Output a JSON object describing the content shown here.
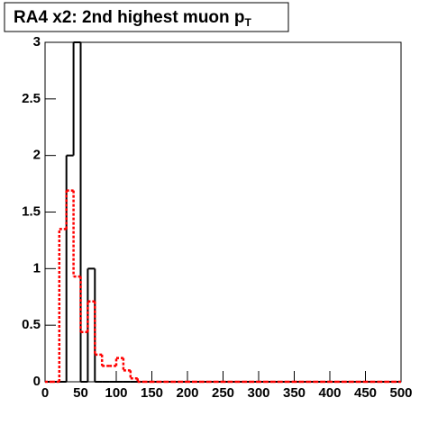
{
  "chart_data": {
    "type": "histogram",
    "title": "RA4 x2: 2nd highest muon p",
    "title_subscript": "T",
    "bins": [
      0,
      10,
      20,
      30,
      40,
      50,
      60,
      70,
      80,
      90,
      100,
      110,
      120,
      130,
      140,
      150,
      160,
      170,
      180,
      190,
      200,
      210,
      220,
      230,
      240,
      250,
      260,
      270,
      280,
      290,
      300,
      310,
      320,
      330,
      340,
      350,
      360,
      370,
      380,
      390,
      400,
      410,
      420,
      430,
      440,
      450,
      460,
      470,
      480,
      490,
      500
    ],
    "series": [
      {
        "color": "#000000",
        "line_style": "solid",
        "values": [
          0,
          0,
          0,
          2,
          3,
          0,
          1,
          0,
          0,
          0,
          0,
          0,
          0,
          0,
          0,
          0,
          0,
          0,
          0,
          0,
          0,
          0,
          0,
          0,
          0,
          0,
          0,
          0,
          0,
          0,
          0,
          0,
          0,
          0,
          0,
          0,
          0,
          0,
          0,
          0,
          0,
          0,
          0,
          0,
          0,
          0,
          0,
          0,
          0,
          0
        ]
      },
      {
        "color": "#ff0000",
        "line_style": "dashed",
        "values": [
          0,
          0,
          1.35,
          1.69,
          0.93,
          0.44,
          0.71,
          0.24,
          0.14,
          0.14,
          0.21,
          0.1,
          0.03,
          0,
          0,
          0,
          0,
          0,
          0,
          0,
          0,
          0,
          0,
          0,
          0,
          0,
          0,
          0,
          0,
          0,
          0,
          0,
          0,
          0,
          0,
          0,
          0,
          0,
          0,
          0,
          0,
          0,
          0,
          0,
          0,
          0,
          0,
          0,
          0,
          0
        ]
      }
    ],
    "xlim": [
      0,
      500
    ],
    "xticks": [
      0,
      50,
      100,
      150,
      200,
      250,
      300,
      350,
      400,
      450,
      500
    ],
    "ylim": [
      0,
      3
    ],
    "yticks": [
      0,
      0.5,
      1,
      1.5,
      2,
      2.5,
      3
    ]
  }
}
